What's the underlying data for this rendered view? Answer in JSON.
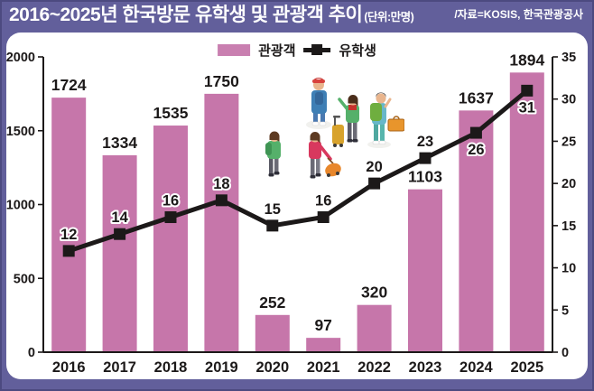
{
  "header": {
    "title": "2016~2025년 한국방문 유학생 및 관광객 추이",
    "unit": "(단위:만명)",
    "source": "/자료=KOSIS, 한국관광공사"
  },
  "legend": [
    {
      "label": "관광객",
      "type": "bar",
      "color": "#c97fb0"
    },
    {
      "label": "유학생",
      "type": "line",
      "color": "#1c1919"
    }
  ],
  "chart_data": {
    "type": "bar+line",
    "title": "2016~2025년 한국방문 유학생 및 관광객 추이",
    "unit_label": "(단위:만명)",
    "categories": [
      "2016",
      "2017",
      "2018",
      "2019",
      "2020",
      "2021",
      "2022",
      "2023",
      "2024",
      "2025"
    ],
    "series": [
      {
        "name": "관광객",
        "type": "bar",
        "axis": "left",
        "color": "#c676aa",
        "values": [
          1724,
          1334,
          1535,
          1750,
          252,
          97,
          320,
          1103,
          1637,
          1894
        ]
      },
      {
        "name": "유학생",
        "type": "line",
        "axis": "right",
        "color": "#1c1919",
        "values": [
          12,
          14,
          16,
          18,
          15,
          16,
          20,
          23,
          26,
          31
        ]
      }
    ],
    "left_axis": {
      "min": 0,
      "max": 2000,
      "ticks": [
        0,
        500,
        1000,
        1500,
        2000
      ]
    },
    "right_axis": {
      "min": 0,
      "max": 35,
      "ticks": [
        0,
        5,
        10,
        15,
        20,
        25,
        30,
        35
      ]
    },
    "legend_position": "top-center",
    "grid": false,
    "text_color": "#1c1919"
  }
}
